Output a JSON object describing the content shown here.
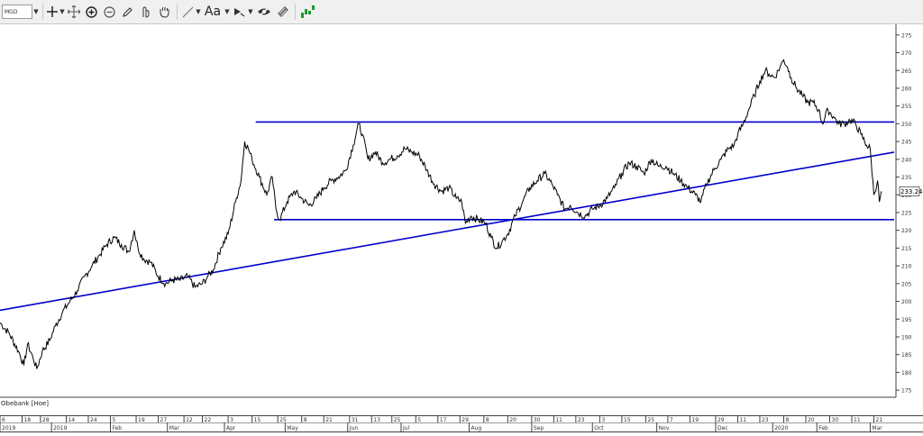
{
  "toolbar": {
    "symbol": "MGD",
    "text_tool_label": "Aa",
    "icons": [
      "cursor-crosshair-icon",
      "move-icon",
      "zoom-in-icon",
      "zoom-out-icon",
      "pencil-icon",
      "hand-pointer-icon",
      "hand-grab-icon",
      "line-draw-icon",
      "text-icon",
      "fill-icon",
      "eye-hide-icon",
      "layers-icon",
      "indicator-icon"
    ]
  },
  "status": {
    "label": "Obebank [Hoe]"
  },
  "colors": {
    "price_line": "#000000",
    "trend_lines": "#0000cc",
    "axis": "#404040",
    "toolbar_bg": "#f0f0f0"
  },
  "chart_data": {
    "type": "line",
    "title": "",
    "xlabel": "",
    "ylabel": "",
    "ylim": [
      173,
      278
    ],
    "y_ticks": [
      175,
      180,
      185,
      190,
      195,
      200,
      205,
      210,
      215,
      220,
      225,
      230,
      235,
      240,
      245,
      250,
      255,
      260,
      265,
      270,
      275
    ],
    "x_range": [
      0,
      487
    ],
    "x_day_ticks": [
      {
        "d": 0,
        "label": "6"
      },
      {
        "d": 12,
        "label": "18"
      },
      {
        "d": 22,
        "label": "28"
      },
      {
        "d": 36,
        "label": "14"
      },
      {
        "d": 48,
        "label": "24"
      },
      {
        "d": 60,
        "label": "5"
      },
      {
        "d": 74,
        "label": "19"
      },
      {
        "d": 86,
        "label": "27"
      },
      {
        "d": 100,
        "label": "12"
      },
      {
        "d": 110,
        "label": "22"
      },
      {
        "d": 124,
        "label": "3"
      },
      {
        "d": 137,
        "label": "15"
      },
      {
        "d": 151,
        "label": "25"
      },
      {
        "d": 164,
        "label": "8"
      },
      {
        "d": 176,
        "label": "21"
      },
      {
        "d": 190,
        "label": "31"
      },
      {
        "d": 202,
        "label": "13"
      },
      {
        "d": 213,
        "label": "25"
      },
      {
        "d": 226,
        "label": "5"
      },
      {
        "d": 238,
        "label": "17"
      },
      {
        "d": 250,
        "label": "29"
      },
      {
        "d": 263,
        "label": "8"
      },
      {
        "d": 276,
        "label": "20"
      },
      {
        "d": 289,
        "label": "30"
      },
      {
        "d": 301,
        "label": "11"
      },
      {
        "d": 313,
        "label": "23"
      },
      {
        "d": 326,
        "label": "3"
      },
      {
        "d": 338,
        "label": "15"
      },
      {
        "d": 351,
        "label": "25"
      },
      {
        "d": 363,
        "label": "7"
      },
      {
        "d": 375,
        "label": "19"
      },
      {
        "d": 389,
        "label": "29"
      },
      {
        "d": 401,
        "label": "11"
      },
      {
        "d": 413,
        "label": "23"
      },
      {
        "d": 426,
        "label": "8"
      },
      {
        "d": 438,
        "label": "20"
      },
      {
        "d": 451,
        "label": "30"
      },
      {
        "d": 463,
        "label": "11"
      },
      {
        "d": 475,
        "label": "21"
      }
    ],
    "x_month_ticks": [
      {
        "d": 0,
        "label": "2019"
      },
      {
        "d": 28,
        "label": "2019"
      },
      {
        "d": 60,
        "label": "Feb"
      },
      {
        "d": 91,
        "label": "Mar"
      },
      {
        "d": 122,
        "label": "Apr"
      },
      {
        "d": 155,
        "label": "May"
      },
      {
        "d": 189,
        "label": "Jun"
      },
      {
        "d": 218,
        "label": "Jul"
      },
      {
        "d": 255,
        "label": "Aug"
      },
      {
        "d": 289,
        "label": "Sep"
      },
      {
        "d": 322,
        "label": "Oct"
      },
      {
        "d": 357,
        "label": "Nov"
      },
      {
        "d": 389,
        "label": "Dec"
      },
      {
        "d": 420,
        "label": "2020"
      },
      {
        "d": 444,
        "label": "Feb"
      },
      {
        "d": 473,
        "label": "Mar"
      }
    ],
    "series": [
      {
        "values": [
          [
            0,
            194
          ],
          [
            5,
            191
          ],
          [
            10,
            186
          ],
          [
            13,
            182
          ],
          [
            15,
            188
          ],
          [
            18,
            184
          ],
          [
            20,
            181
          ],
          [
            23,
            186
          ],
          [
            27,
            189
          ],
          [
            30,
            193
          ],
          [
            34,
            197
          ],
          [
            38,
            200
          ],
          [
            42,
            203
          ],
          [
            46,
            207
          ],
          [
            50,
            210
          ],
          [
            54,
            213
          ],
          [
            58,
            216
          ],
          [
            62,
            218
          ],
          [
            66,
            216
          ],
          [
            70,
            214
          ],
          [
            73,
            220
          ],
          [
            75,
            215
          ],
          [
            78,
            212
          ],
          [
            82,
            211
          ],
          [
            86,
            207
          ],
          [
            90,
            205
          ],
          [
            94,
            206
          ],
          [
            98,
            206
          ],
          [
            102,
            207
          ],
          [
            106,
            204
          ],
          [
            110,
            205
          ],
          [
            113,
            207
          ],
          [
            116,
            209
          ],
          [
            120,
            215
          ],
          [
            124,
            219
          ],
          [
            128,
            228
          ],
          [
            131,
            234
          ],
          [
            133,
            245
          ],
          [
            135,
            243
          ],
          [
            137,
            240
          ],
          [
            141,
            235
          ],
          [
            145,
            230
          ],
          [
            148,
            235
          ],
          [
            150,
            226
          ],
          [
            152,
            223
          ],
          [
            156,
            228
          ],
          [
            160,
            231
          ],
          [
            164,
            229
          ],
          [
            168,
            227
          ],
          [
            172,
            229
          ],
          [
            176,
            232
          ],
          [
            180,
            234
          ],
          [
            184,
            235
          ],
          [
            188,
            237
          ],
          [
            192,
            244
          ],
          [
            195,
            250
          ],
          [
            197,
            247
          ],
          [
            200,
            240
          ],
          [
            204,
            242
          ],
          [
            208,
            239
          ],
          [
            212,
            240
          ],
          [
            216,
            241
          ],
          [
            220,
            243
          ],
          [
            224,
            242
          ],
          [
            228,
            241
          ],
          [
            232,
            237
          ],
          [
            236,
            233
          ],
          [
            240,
            231
          ],
          [
            244,
            232
          ],
          [
            248,
            229
          ],
          [
            251,
            228
          ],
          [
            253,
            222
          ],
          [
            256,
            224
          ],
          [
            260,
            223
          ],
          [
            264,
            222
          ],
          [
            267,
            218
          ],
          [
            270,
            215
          ],
          [
            273,
            217
          ],
          [
            276,
            219
          ],
          [
            280,
            224
          ],
          [
            284,
            228
          ],
          [
            288,
            232
          ],
          [
            292,
            234
          ],
          [
            296,
            236
          ],
          [
            300,
            233
          ],
          [
            303,
            230
          ],
          [
            307,
            226
          ],
          [
            310,
            227
          ],
          [
            314,
            225
          ],
          [
            318,
            224
          ],
          [
            322,
            226
          ],
          [
            326,
            227
          ],
          [
            330,
            229
          ],
          [
            334,
            232
          ],
          [
            338,
            236
          ],
          [
            342,
            239
          ],
          [
            346,
            238
          ],
          [
            350,
            236
          ],
          [
            354,
            240
          ],
          [
            358,
            238
          ],
          [
            362,
            238
          ],
          [
            366,
            236
          ],
          [
            370,
            234
          ],
          [
            374,
            232
          ],
          [
            378,
            230
          ],
          [
            381,
            228
          ],
          [
            384,
            233
          ],
          [
            388,
            237
          ],
          [
            392,
            240
          ],
          [
            396,
            243
          ],
          [
            399,
            244
          ],
          [
            401,
            247
          ],
          [
            404,
            250
          ],
          [
            407,
            254
          ],
          [
            410,
            258
          ],
          [
            413,
            262
          ],
          [
            416,
            265
          ],
          [
            418,
            264
          ],
          [
            421,
            263
          ],
          [
            424,
            266
          ],
          [
            426,
            268
          ],
          [
            428,
            266
          ],
          [
            430,
            263
          ],
          [
            433,
            260
          ],
          [
            436,
            258
          ],
          [
            439,
            256
          ],
          [
            442,
            256
          ],
          [
            445,
            254
          ],
          [
            447,
            250
          ],
          [
            450,
            254
          ],
          [
            453,
            252
          ],
          [
            456,
            250
          ],
          [
            459,
            250
          ],
          [
            462,
            251
          ],
          [
            465,
            250
          ],
          [
            468,
            247
          ],
          [
            471,
            244
          ],
          [
            473,
            243
          ],
          [
            475,
            230
          ],
          [
            477,
            234
          ],
          [
            478,
            228
          ],
          [
            479,
            231
          ]
        ]
      }
    ],
    "trend_lines": [
      {
        "x1": 0,
        "y1": 197.5,
        "x2": 487,
        "y2": 242
      },
      {
        "x1": 139,
        "y1": 250.5,
        "x2": 487,
        "y2": 250.5
      },
      {
        "x1": 149,
        "y1": 223,
        "x2": 487,
        "y2": 223
      }
    ],
    "last_price_label": "233.24"
  }
}
